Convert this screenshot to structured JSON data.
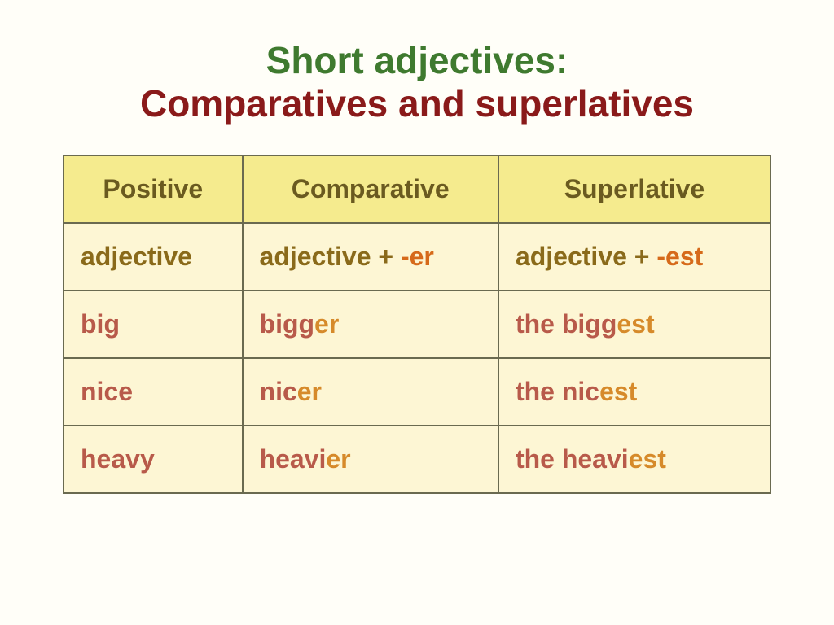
{
  "title": {
    "line1": "Short adjectives:",
    "line1_color": "#3f7a2f",
    "line2": "Comparatives and superlatives",
    "line2_color": "#8a1a1a"
  },
  "colors": {
    "header_bg": "#f5eb8e",
    "header_text": "#6a5a20",
    "cell_bg": "#fdf6d4",
    "rule_text": "#8a6a1a",
    "suffix": "#d66a1a",
    "example_stem": "#b85a4a",
    "example_suffix": "#d68a2a",
    "border": "#6a6a50"
  },
  "table": {
    "headers": [
      "Positive",
      "Comparative",
      "Superlative"
    ],
    "rule_row": {
      "positive": "adjective",
      "comparative_base": "adjective + ",
      "comparative_suffix": "-er",
      "superlative_base": "adjective + ",
      "superlative_suffix": "-est"
    },
    "examples": [
      {
        "pos": "big",
        "cmp_stem": "bigg",
        "cmp_suf": "er",
        "sup_pre": "the ",
        "sup_stem": "bigg",
        "sup_suf": "est"
      },
      {
        "pos": "nice",
        "cmp_stem": "nic",
        "cmp_suf": "er",
        "sup_pre": "the ",
        "sup_stem": "nic",
        "sup_suf": "est"
      },
      {
        "pos": "heavy",
        "cmp_stem": "heavi",
        "cmp_suf": "er",
        "sup_pre": "the ",
        "sup_stem": "heavi",
        "sup_suf": "est"
      }
    ]
  }
}
